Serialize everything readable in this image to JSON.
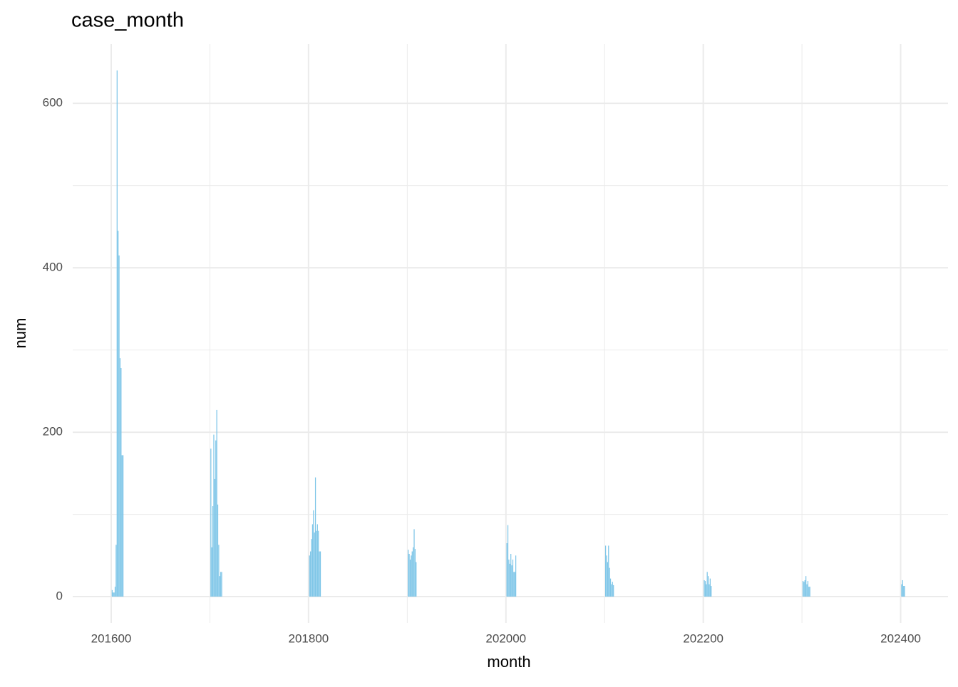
{
  "chart_data": {
    "type": "bar",
    "title": "case_month",
    "x_label": "month",
    "y_label": "num",
    "color": "#7fc6e8",
    "x": [
      201601,
      201602,
      201603,
      201604,
      201605,
      201606,
      201607,
      201608,
      201609,
      201610,
      201611,
      201612,
      201701,
      201702,
      201703,
      201704,
      201705,
      201706,
      201707,
      201708,
      201709,
      201710,
      201711,
      201712,
      201801,
      201802,
      201803,
      201804,
      201805,
      201806,
      201807,
      201808,
      201809,
      201810,
      201811,
      201812,
      201901,
      201902,
      201903,
      201904,
      201905,
      201906,
      201907,
      201908,
      201909,
      202001,
      202002,
      202003,
      202004,
      202005,
      202006,
      202007,
      202008,
      202009,
      202010,
      202101,
      202102,
      202103,
      202104,
      202105,
      202106,
      202107,
      202108,
      202109,
      202201,
      202202,
      202203,
      202204,
      202205,
      202206,
      202207,
      202208,
      202301,
      202302,
      202303,
      202304,
      202305,
      202306,
      202307,
      202308,
      202401,
      202402,
      202403,
      202404
    ],
    "values": [
      8,
      5,
      5,
      12,
      63,
      640,
      445,
      415,
      290,
      278,
      172,
      172,
      180,
      60,
      110,
      197,
      143,
      190,
      227,
      112,
      63,
      25,
      30,
      30,
      50,
      55,
      70,
      88,
      105,
      78,
      145,
      80,
      88,
      80,
      55,
      55,
      57,
      52,
      45,
      50,
      55,
      60,
      82,
      58,
      42,
      65,
      87,
      45,
      40,
      52,
      38,
      45,
      30,
      30,
      50,
      62,
      50,
      42,
      62,
      35,
      22,
      15,
      18,
      14,
      20,
      19,
      15,
      30,
      25,
      15,
      22,
      13,
      19,
      18,
      20,
      25,
      15,
      19,
      12,
      12,
      15,
      20,
      13,
      13
    ],
    "xlim": [
      201561,
      202448
    ],
    "xticks": [
      201600,
      201800,
      202000,
      202200,
      202400
    ],
    "x_minor_ticks": [
      201700,
      201900,
      202100,
      202300
    ],
    "ylim": [
      -32,
      672
    ],
    "yticks": [
      0,
      200,
      400,
      600
    ],
    "y_minor_ticks": [
      100,
      300,
      500
    ],
    "grid": true
  }
}
